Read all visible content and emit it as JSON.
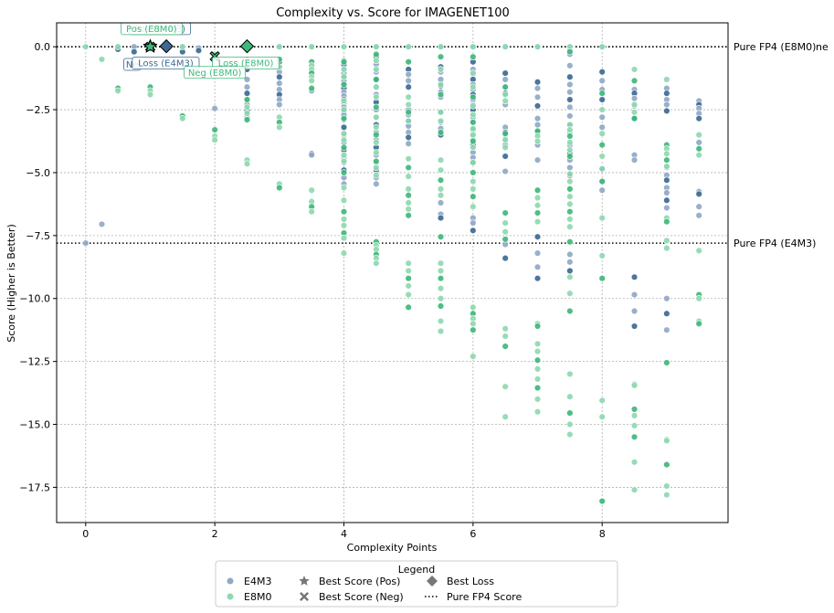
{
  "chart_data": {
    "type": "scatter",
    "title": "Complexity vs. Score for IMAGENET100",
    "xlabel": "Complexity Points",
    "ylabel": "Score (Higher is Better)",
    "xlim": [
      -0.45,
      9.95
    ],
    "ylim": [
      -18.9,
      0.95
    ],
    "x_ticks": [
      0,
      2,
      4,
      6,
      8
    ],
    "y_ticks": [
      0.0,
      -2.5,
      -5.0,
      -7.5,
      -10.0,
      -12.5,
      -15.0,
      -17.5
    ],
    "y_tick_labels": [
      "0.0",
      "−2.5",
      "−5.0",
      "−7.5",
      "−10.0",
      "−12.5",
      "−15.0",
      "−17.5"
    ],
    "grid": true,
    "colors": {
      "E4M3_light": "#8fa9c6",
      "E4M3_dark": "#3d6a93",
      "E8M0_light": "#8ed9b0",
      "E8M0_dark": "#3fb97a"
    },
    "reference_lines": [
      {
        "y": 0.0,
        "label": "Pure FP4 (E8M0)",
        "style": "dotted"
      },
      {
        "y": -7.8,
        "label": "Pure FP4 (E4M3)",
        "style": "dotted"
      }
    ],
    "baseline_label_fragment": "ne",
    "series": [
      {
        "name": "E4M3",
        "columns": [
          {
            "x": 0,
            "y": [
              -7.8
            ]
          },
          {
            "x": 0.25,
            "y": [
              -7.05
            ]
          },
          {
            "x": 0.5,
            "y": [
              0.0,
              -0.1
            ]
          },
          {
            "x": 0.75,
            "y": [
              0.0,
              -0.2
            ]
          },
          {
            "x": 1,
            "y": [
              0.0,
              -0.05
            ]
          },
          {
            "x": 1.25,
            "y": [
              0.0,
              -0.1
            ]
          },
          {
            "x": 1.5,
            "y": [
              0.0,
              -0.2
            ]
          },
          {
            "x": 1.75,
            "y": [
              -0.05,
              -0.15
            ]
          },
          {
            "x": 2,
            "y": [
              -2.45
            ]
          },
          {
            "x": 2.5,
            "y": [
              -0.5,
              -0.9,
              -1.3,
              -1.6,
              -1.85,
              -2.1,
              -2.3,
              -2.55,
              -2.8
            ]
          },
          {
            "x": 3,
            "y": [
              0.0,
              -0.6,
              -0.8,
              -1.0,
              -1.2,
              -1.45,
              -1.7,
              -1.9,
              -2.1,
              -2.3
            ]
          },
          {
            "x": 3.5,
            "y": [
              0.0,
              -0.75,
              -1.0,
              -1.75,
              -4.25,
              -4.3
            ]
          },
          {
            "x": 4,
            "y": [
              -0.55,
              -0.7,
              -0.9,
              -1.05,
              -1.2,
              -1.35,
              -1.5,
              -1.65,
              -1.8,
              -1.95,
              -2.1,
              -2.25,
              -2.4,
              -2.55,
              -2.7,
              -2.9,
              -3.2,
              -3.5,
              -3.8,
              -4.1,
              -4.4,
              -4.6,
              -4.9,
              -5.2,
              -5.45
            ]
          },
          {
            "x": 4.5,
            "y": [
              0.0,
              -0.4,
              -0.7,
              -1.0,
              -1.3,
              -1.6,
              -1.9,
              -2.2,
              -2.5,
              -2.8,
              -3.1,
              -3.4,
              -3.7,
              -4.0,
              -4.3,
              -4.6,
              -4.9,
              -5.2,
              -5.45
            ]
          },
          {
            "x": 5,
            "y": [
              0.0,
              -0.9,
              -1.1,
              -1.35,
              -1.6,
              -2.5,
              -2.7,
              -2.95,
              -3.15,
              -3.4,
              -3.6,
              -3.85
            ]
          },
          {
            "x": 5.5,
            "y": [
              0.0,
              -0.8,
              -1.0,
              -1.3,
              -1.55,
              -1.8,
              -2.0,
              -2.6,
              -3.0,
              -3.25,
              -3.5,
              -6.2,
              -6.65,
              -6.8
            ]
          },
          {
            "x": 6,
            "y": [
              0.0,
              -0.6,
              -0.9,
              -1.1,
              -1.3,
              -1.5,
              -1.7,
              -1.9,
              -2.1,
              -2.3,
              -2.5,
              -2.8,
              -3.0,
              -3.3,
              -3.5,
              -3.7,
              -3.9,
              -4.2,
              -4.4,
              -4.6,
              -6.8,
              -7.0,
              -7.3
            ]
          },
          {
            "x": 6.5,
            "y": [
              0.0,
              -1.05,
              -1.3,
              -1.6,
              -1.85,
              -2.3,
              -3.2,
              -3.4,
              -3.65,
              -3.9,
              -4.35,
              -4.95,
              -7.85,
              -8.4
            ]
          },
          {
            "x": 7,
            "y": [
              0.0,
              -1.4,
              -1.65,
              -2.0,
              -2.35,
              -2.85,
              -3.1,
              -3.4,
              -3.9,
              -4.5,
              -7.55,
              -8.2,
              -8.75,
              -9.2
            ]
          },
          {
            "x": 7.5,
            "y": [
              0.0,
              -0.15,
              -0.3,
              -0.75,
              -1.2,
              -1.5,
              -1.8,
              -2.1,
              -2.4,
              -2.75,
              -3.1,
              -3.4,
              -3.9,
              -4.25,
              -4.5,
              -4.8,
              -5.1,
              -8.25,
              -8.55,
              -8.9
            ]
          },
          {
            "x": 8,
            "y": [
              0.0,
              -1.0,
              -1.35,
              -1.7,
              -2.1,
              -2.8,
              -3.2,
              -4.85,
              -5.35,
              -5.7
            ]
          },
          {
            "x": 8.5,
            "y": [
              -1.7,
              -1.85,
              -2.05,
              -2.35,
              -2.85,
              -4.3,
              -4.5,
              -9.15,
              -9.85,
              -10.5,
              -11.1
            ]
          },
          {
            "x": 9,
            "y": [
              -1.65,
              -1.85,
              -2.1,
              -2.3,
              -2.55,
              -4.8,
              -5.1,
              -5.3,
              -5.6,
              -5.8,
              -6.1,
              -6.4,
              -10.0,
              -10.6,
              -11.25
            ]
          },
          {
            "x": 9.5,
            "y": [
              -2.15,
              -2.3,
              -2.45,
              -2.65,
              -2.85,
              -3.8,
              -5.75,
              -5.85,
              -6.35,
              -6.7
            ]
          }
        ]
      },
      {
        "name": "E8M0",
        "columns": [
          {
            "x": 0,
            "y": [
              0.0
            ]
          },
          {
            "x": 0.25,
            "y": [
              -0.5
            ]
          },
          {
            "x": 0.5,
            "y": [
              0.0,
              -1.65,
              -1.75
            ]
          },
          {
            "x": 1,
            "y": [
              0.0,
              -1.6,
              -1.75,
              -1.9
            ]
          },
          {
            "x": 1.5,
            "y": [
              0.0,
              -2.75,
              -2.85
            ]
          },
          {
            "x": 2,
            "y": [
              -0.3,
              -3.3,
              -3.55,
              -3.7
            ]
          },
          {
            "x": 2.5,
            "y": [
              0.0,
              -2.1,
              -2.4,
              -2.65,
              -2.9,
              -4.5,
              -4.65
            ]
          },
          {
            "x": 3,
            "y": [
              0.0,
              -0.5,
              -0.8,
              -2.8,
              -3.0,
              -3.2,
              -5.45,
              -5.6
            ]
          },
          {
            "x": 3.5,
            "y": [
              0.0,
              -0.6,
              -0.75,
              -0.9,
              -1.05,
              -1.2,
              -1.35,
              -1.65,
              -5.7,
              -6.15,
              -6.35,
              -6.55
            ]
          },
          {
            "x": 4,
            "y": [
              0.0,
              -0.6,
              -0.9,
              -1.2,
              -1.5,
              -2.15,
              -2.5,
              -2.85,
              -3.45,
              -3.7,
              -4.0,
              -4.3,
              -4.55,
              -5.0,
              -5.6,
              -6.1,
              -6.55,
              -6.85,
              -7.1,
              -7.4,
              -7.6,
              -8.2
            ]
          },
          {
            "x": 4.5,
            "y": [
              0.0,
              -0.3,
              -0.55,
              -0.9,
              -1.3,
              -1.6,
              -2.0,
              -2.4,
              -2.8,
              -3.2,
              -3.5,
              -3.8,
              -4.2,
              -4.55,
              -4.8,
              -5.1,
              -7.75,
              -7.9,
              -8.05,
              -8.25,
              -8.4,
              -8.6
            ]
          },
          {
            "x": 5,
            "y": [
              0.0,
              -0.6,
              -2.0,
              -2.3,
              -2.6,
              -2.95,
              -4.45,
              -4.8,
              -5.15,
              -5.65,
              -5.9,
              -6.2,
              -6.45,
              -6.7,
              -8.6,
              -8.9,
              -9.2,
              -9.5,
              -9.85,
              -10.35
            ]
          },
          {
            "x": 5.5,
            "y": [
              0.0,
              -0.4,
              -0.9,
              -1.5,
              -1.9,
              -2.6,
              -2.95,
              -3.4,
              -4.5,
              -4.9,
              -5.3,
              -5.65,
              -5.9,
              -7.55,
              -8.6,
              -8.9,
              -9.2,
              -9.6,
              -10.0,
              -10.3,
              -10.9,
              -11.3
            ]
          },
          {
            "x": 6,
            "y": [
              0.0,
              -0.4,
              -1.05,
              -1.6,
              -2.0,
              -2.35,
              -2.7,
              -3.0,
              -3.25,
              -3.5,
              -3.75,
              -4.0,
              -4.6,
              -5.0,
              -5.35,
              -5.65,
              -5.95,
              -6.35,
              -10.35,
              -10.6,
              -10.8,
              -11.0,
              -11.25,
              -12.3
            ]
          },
          {
            "x": 6.5,
            "y": [
              0.0,
              -1.6,
              -1.9,
              -2.15,
              -3.45,
              -3.7,
              -4.0,
              -6.6,
              -7.0,
              -7.35,
              -7.65,
              -11.2,
              -11.5,
              -11.9,
              -13.5,
              -14.7
            ]
          },
          {
            "x": 7,
            "y": [
              0.0,
              -3.35,
              -3.55,
              -3.75,
              -5.7,
              -6.0,
              -6.3,
              -6.6,
              -6.95,
              -11.0,
              -11.1,
              -11.8,
              -12.1,
              -12.45,
              -12.8,
              -13.2,
              -13.55,
              -14.0,
              -14.5
            ]
          },
          {
            "x": 7.5,
            "y": [
              0.0,
              -0.2,
              -3.1,
              -3.3,
              -3.55,
              -3.8,
              -4.1,
              -4.35,
              -5.05,
              -5.35,
              -5.65,
              -5.95,
              -6.25,
              -6.55,
              -6.85,
              -7.15,
              -7.75,
              -9.15,
              -9.8,
              -10.5,
              -13.0,
              -13.9,
              -14.55,
              -15.0,
              -15.4
            ]
          },
          {
            "x": 8,
            "y": [
              0.0,
              -1.85,
              -2.5,
              -3.45,
              -3.9,
              -4.35,
              -4.85,
              -5.35,
              -6.8,
              -8.3,
              -9.2,
              -14.05,
              -14.7,
              -18.05
            ]
          },
          {
            "x": 8.5,
            "y": [
              -0.9,
              -1.35,
              -2.3,
              -2.6,
              -2.85,
              -13.4,
              -13.45,
              -14.4,
              -14.65,
              -15.05,
              -15.5,
              -16.5,
              -17.6
            ]
          },
          {
            "x": 9,
            "y": [
              -1.3,
              -3.9,
              -4.05,
              -4.25,
              -4.5,
              -4.75,
              -6.8,
              -6.95,
              -7.7,
              -8.0,
              -12.55,
              -15.6,
              -15.65,
              -16.6,
              -17.45,
              -17.8
            ]
          },
          {
            "x": 9.5,
            "y": [
              -3.5,
              -4.05,
              -4.3,
              -8.1,
              -9.85,
              -10.0,
              -10.9,
              -11.0
            ]
          }
        ]
      }
    ],
    "highlights": [
      {
        "series": "E4M3",
        "marker": "star",
        "kind": "Best Score (Pos)",
        "x": 1.0,
        "y": 0.02
      },
      {
        "series": "E4M3",
        "marker": "diamond",
        "kind": "Best Loss",
        "x": 1.25,
        "y": 0.02
      },
      {
        "series": "E4M3",
        "marker": "x",
        "kind": "Best Score (Neg)",
        "x": 1.0,
        "y": 0.0
      },
      {
        "series": "E8M0",
        "marker": "diamond",
        "kind": "Best Loss",
        "x": 2.5,
        "y": 0.02
      },
      {
        "series": "E8M0",
        "marker": "x",
        "kind": "Best Score (Neg)",
        "x": 2.0,
        "y": -0.38
      },
      {
        "series": "E8M0",
        "marker": "star",
        "kind": "Best Score (Pos)",
        "x": 1.0,
        "y": 0.0
      }
    ],
    "annotations": [
      {
        "text": "Pos (E4M3)",
        "series": "E4M3",
        "bx": 1.15,
        "by": 0.72
      },
      {
        "text": "Pos (E8M0)",
        "series": "E8M0",
        "bx": 1.02,
        "by": 0.72
      },
      {
        "text": "Ne",
        "series": "E4M3",
        "bx": 0.72,
        "by": -0.7
      },
      {
        "text": "Loss (E4M3)",
        "series": "E4M3",
        "bx": 1.24,
        "by": -0.65
      },
      {
        "text": "Loss (E8M0)",
        "series": "E8M0",
        "bx": 2.48,
        "by": -0.65
      },
      {
        "text": "Neg (E8M0)",
        "series": "E8M0",
        "bx": 2.0,
        "by": -1.02
      }
    ],
    "legend": {
      "title": "Legend",
      "placement": "below",
      "items": [
        {
          "label": "E4M3",
          "marker": "dot",
          "color": "#8fa9c6"
        },
        {
          "label": "E8M0",
          "marker": "dot",
          "color": "#8ed9b0"
        },
        {
          "label": "Best Score (Pos)",
          "marker": "star",
          "color": "#777777"
        },
        {
          "label": "Best Score (Neg)",
          "marker": "x",
          "color": "#777777"
        },
        {
          "label": "Best Loss",
          "marker": "diamond",
          "color": "#777777"
        },
        {
          "label": "Pure FP4 Score",
          "marker": "dotted-line",
          "color": "#000000"
        }
      ]
    }
  }
}
